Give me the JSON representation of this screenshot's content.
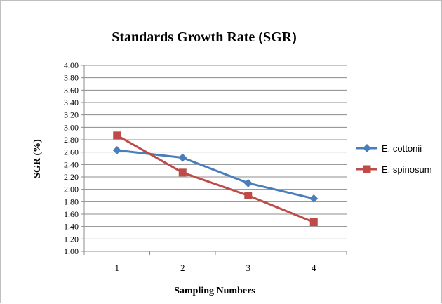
{
  "chart_data": {
    "type": "line",
    "title": "Standards Growth Rate (SGR)",
    "xlabel": "Sampling Numbers",
    "ylabel": "SGR (%)",
    "categories": [
      "1",
      "2",
      "3",
      "4"
    ],
    "ylim": [
      1.0,
      4.0
    ],
    "ytick_step": 0.2,
    "yticks": [
      "1.00",
      "1.20",
      "1.40",
      "1.60",
      "1.80",
      "2.00",
      "2.20",
      "2.40",
      "2.60",
      "2.80",
      "3.00",
      "3.20",
      "3.40",
      "3.60",
      "3.80",
      "4.00"
    ],
    "grid": true,
    "legend_position": "right",
    "series": [
      {
        "name": "E. cottonii",
        "values": [
          2.63,
          2.51,
          2.1,
          1.85
        ],
        "color": "#4a7ebb",
        "marker": "diamond"
      },
      {
        "name": "E. spinosum",
        "values": [
          2.87,
          2.27,
          1.9,
          1.47
        ],
        "color": "#be4b48",
        "marker": "square"
      }
    ]
  }
}
